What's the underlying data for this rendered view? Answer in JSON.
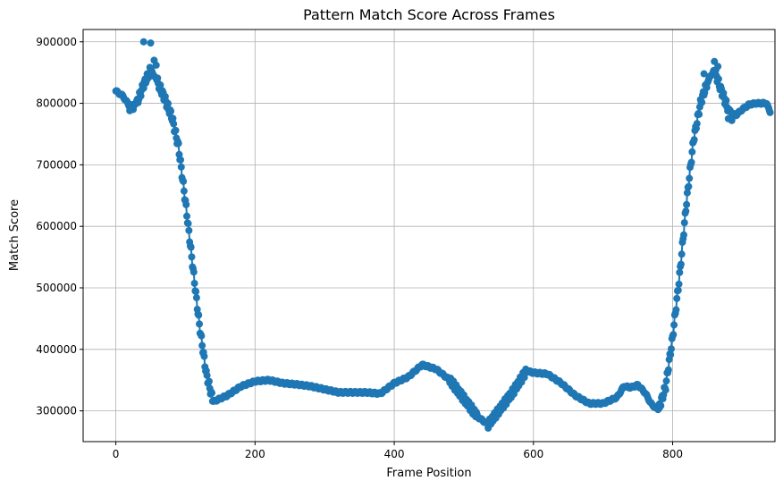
{
  "chart_data": {
    "type": "line",
    "title": "Pattern Match Score Across Frames",
    "xlabel": "Frame Position",
    "ylabel": "Match Score",
    "xlim": [
      -47,
      947
    ],
    "ylim": [
      250000,
      920000
    ],
    "xticks": [
      0,
      200,
      400,
      600,
      800
    ],
    "yticks": [
      300000,
      400000,
      500000,
      600000,
      700000,
      800000,
      900000
    ],
    "grid": true,
    "marker": "circle",
    "color": "#1f77b4",
    "series": [
      {
        "keypoints": [
          [
            0,
            820000
          ],
          [
            10,
            812000
          ],
          [
            20,
            795000
          ],
          [
            30,
            800000
          ],
          [
            40,
            830000
          ],
          [
            50,
            855000
          ],
          [
            60,
            835000
          ],
          [
            70,
            808000
          ],
          [
            80,
            780000
          ],
          [
            90,
            730000
          ],
          [
            100,
            640000
          ],
          [
            110,
            540000
          ],
          [
            120,
            440000
          ],
          [
            130,
            360000
          ],
          [
            140,
            315000
          ],
          [
            160,
            325000
          ],
          [
            180,
            340000
          ],
          [
            200,
            348000
          ],
          [
            220,
            350000
          ],
          [
            240,
            345000
          ],
          [
            260,
            343000
          ],
          [
            280,
            340000
          ],
          [
            300,
            335000
          ],
          [
            320,
            330000
          ],
          [
            340,
            330000
          ],
          [
            360,
            330000
          ],
          [
            380,
            328000
          ],
          [
            400,
            345000
          ],
          [
            420,
            355000
          ],
          [
            440,
            375000
          ],
          [
            460,
            368000
          ],
          [
            480,
            350000
          ],
          [
            500,
            320000
          ],
          [
            520,
            290000
          ],
          [
            535,
            278000
          ],
          [
            550,
            300000
          ],
          [
            570,
            330000
          ],
          [
            590,
            365000
          ],
          [
            600,
            362000
          ],
          [
            620,
            360000
          ],
          [
            640,
            345000
          ],
          [
            660,
            325000
          ],
          [
            680,
            312000
          ],
          [
            700,
            312000
          ],
          [
            720,
            322000
          ],
          [
            730,
            340000
          ],
          [
            740,
            338000
          ],
          [
            750,
            342000
          ],
          [
            760,
            330000
          ],
          [
            770,
            310000
          ],
          [
            780,
            302000
          ],
          [
            790,
            340000
          ],
          [
            800,
            420000
          ],
          [
            810,
            520000
          ],
          [
            820,
            640000
          ],
          [
            830,
            740000
          ],
          [
            840,
            800000
          ],
          [
            850,
            835000
          ],
          [
            860,
            855000
          ],
          [
            870,
            820000
          ],
          [
            880,
            790000
          ],
          [
            890,
            780000
          ],
          [
            900,
            790000
          ],
          [
            910,
            798000
          ],
          [
            920,
            800000
          ],
          [
            935,
            800000
          ],
          [
            940,
            785000
          ]
        ],
        "noise": [
          [
            40,
            900000
          ],
          [
            50,
            898000
          ],
          [
            55,
            870000
          ],
          [
            58,
            862000
          ],
          [
            860,
            868000
          ],
          [
            865,
            860000
          ],
          [
            855,
            845000
          ],
          [
            845,
            848000
          ],
          [
            20,
            788000
          ],
          [
            25,
            790000
          ],
          [
            880,
            775000
          ],
          [
            885,
            772000
          ]
        ]
      }
    ]
  }
}
